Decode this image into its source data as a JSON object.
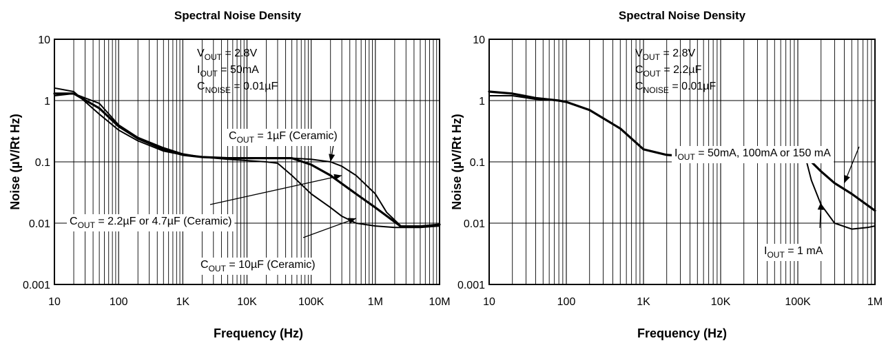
{
  "chart_data": [
    {
      "type": "line",
      "title": "Spectral Noise Density",
      "xlabel": "Frequency (Hz)",
      "ylabel": "Noise (µV/Rt Hz)",
      "x_scale": "log",
      "y_scale": "log",
      "xlim": [
        10,
        10000000
      ],
      "ylim": [
        0.001,
        10
      ],
      "x_ticks": [
        "10",
        "100",
        "1K",
        "10K",
        "100K",
        "1M",
        "10M"
      ],
      "y_ticks": [
        "10",
        "1",
        "0.1",
        "0.01",
        "0.001"
      ],
      "grid": true,
      "conditions": [
        {
          "name": "V",
          "sub": "OUT",
          "value": " = 2.8V"
        },
        {
          "name": "I",
          "sub": "OUT",
          "value": " = 50mA"
        },
        {
          "name": "C",
          "sub": "NOISE",
          "value": " = 0.01µF"
        }
      ],
      "annotations": [
        {
          "name": "C",
          "sub": "OUT",
          "value": " = 1µF (Ceramic)"
        },
        {
          "name": "C",
          "sub": "OUT",
          "value": " = 2.2µF or 4.7µF (Ceramic)"
        },
        {
          "name": "C",
          "sub": "OUT",
          "value": " = 10µF (Ceramic)"
        }
      ],
      "series": [
        {
          "label_ref": "C_OUT = 1µF (Ceramic)",
          "x": [
            10,
            20,
            50,
            100,
            200,
            500,
            1000,
            2000,
            5000,
            10000,
            20000,
            50000,
            100000,
            200000,
            300000,
            500000,
            1000000,
            1500000,
            2500000,
            5000000,
            10000000
          ],
          "y": [
            1.6,
            1.4,
            0.6,
            0.33,
            0.22,
            0.15,
            0.13,
            0.12,
            0.115,
            0.115,
            0.115,
            0.115,
            0.11,
            0.1,
            0.085,
            0.06,
            0.03,
            0.015,
            0.009,
            0.009,
            0.0095
          ]
        },
        {
          "label_ref": "C_OUT = 2.2µF or 4.7µF (Ceramic)",
          "x": [
            10,
            20,
            50,
            100,
            200,
            500,
            1000,
            2000,
            5000,
            10000,
            20000,
            50000,
            100000,
            200000,
            500000,
            1000000,
            2500000,
            5000000,
            10000000
          ],
          "y": [
            1.3,
            1.3,
            0.75,
            0.38,
            0.24,
            0.16,
            0.13,
            0.12,
            0.115,
            0.115,
            0.115,
            0.115,
            0.09,
            0.06,
            0.03,
            0.018,
            0.0088,
            0.0088,
            0.0095
          ]
        },
        {
          "label_ref": "C_OUT = 10µF (Ceramic)",
          "x": [
            10,
            20,
            50,
            100,
            200,
            500,
            1000,
            2000,
            5000,
            10000,
            20000,
            30000,
            50000,
            100000,
            200000,
            300000,
            500000,
            1000000,
            2000000,
            5000000,
            10000000
          ],
          "y": [
            1.2,
            1.3,
            0.9,
            0.4,
            0.25,
            0.17,
            0.135,
            0.12,
            0.11,
            0.105,
            0.1,
            0.095,
            0.06,
            0.03,
            0.018,
            0.013,
            0.01,
            0.009,
            0.0085,
            0.0085,
            0.009
          ]
        }
      ]
    },
    {
      "type": "line",
      "title": "Spectral Noise Density",
      "xlabel": "Frequency (Hz)",
      "ylabel": "Noise (µV/Rt Hz)",
      "x_scale": "log",
      "y_scale": "log",
      "xlim": [
        10,
        1000000
      ],
      "ylim": [
        0.001,
        10
      ],
      "x_ticks": [
        "10",
        "100",
        "1K",
        "10K",
        "100K",
        "1M"
      ],
      "y_ticks": [
        "10",
        "1",
        "0.1",
        "0.01",
        "0.001"
      ],
      "grid": true,
      "conditions": [
        {
          "name": "V",
          "sub": "OUT",
          "value": " = 2.8V"
        },
        {
          "name": "C",
          "sub": "OUT",
          "value": " = 2.2µF"
        },
        {
          "name": "C",
          "sub": "NOISE",
          "value": " = 0.01µF"
        }
      ],
      "annotations": [
        {
          "name": "I",
          "sub": "OUT",
          "value": " = 50mA, 100mA or 150 mA"
        },
        {
          "name": "I",
          "sub": "OUT",
          "value": " = 1 mA"
        }
      ],
      "series": [
        {
          "label_ref": "I_OUT = 50mA, 100mA or 150 mA",
          "x": [
            10,
            20,
            40,
            80,
            100,
            200,
            500,
            1000,
            2000,
            5000,
            10000,
            20000,
            50000,
            100000,
            130000,
            150000,
            200000,
            300000,
            500000,
            1000000
          ],
          "y": [
            1.4,
            1.3,
            1.1,
            1.0,
            0.95,
            0.7,
            0.35,
            0.16,
            0.13,
            0.12,
            0.115,
            0.115,
            0.115,
            0.12,
            0.12,
            0.1,
            0.07,
            0.045,
            0.03,
            0.016
          ]
        },
        {
          "label_ref": "I_OUT = 1 mA",
          "x": [
            10,
            20,
            40,
            80,
            100,
            200,
            500,
            1000,
            2000,
            5000,
            10000,
            20000,
            50000,
            100000,
            130000,
            150000,
            200000,
            300000,
            500000,
            800000,
            1000000
          ],
          "y": [
            1.2,
            1.2,
            1.05,
            1.0,
            0.95,
            0.7,
            0.35,
            0.16,
            0.13,
            0.12,
            0.115,
            0.115,
            0.115,
            0.12,
            0.1,
            0.05,
            0.02,
            0.01,
            0.008,
            0.0085,
            0.009
          ]
        }
      ]
    }
  ]
}
